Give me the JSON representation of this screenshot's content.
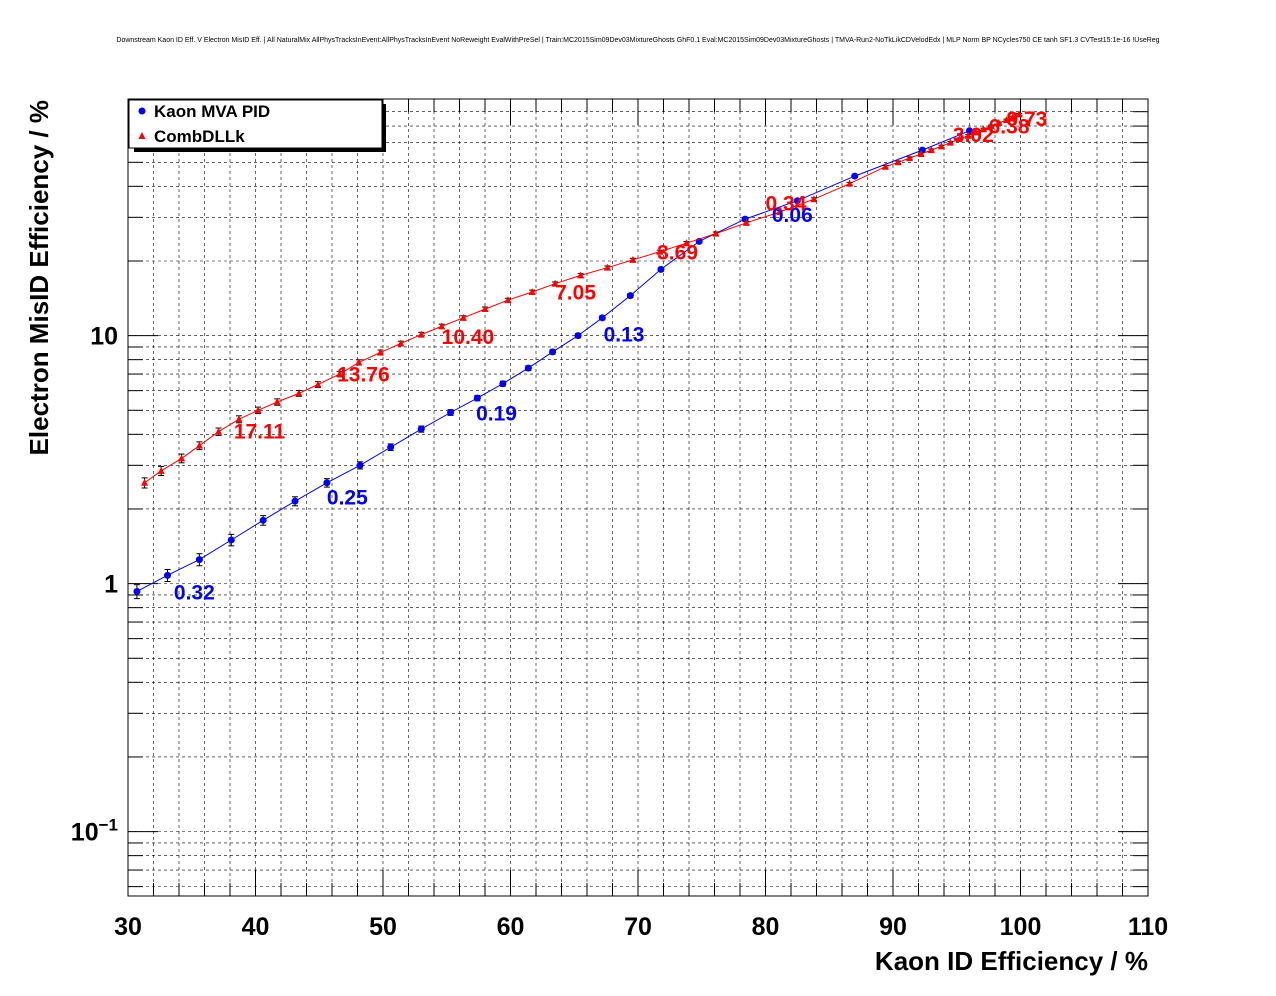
{
  "chart_data": {
    "type": "line",
    "title": "Downstream Kaon ID Eff. V Electron MisID Eff. | All NaturalMix AllPhysTracksInEvent:AllPhysTracksInEvent NoReweight EvalWithPreSel | Train:MC2015Sim09Dev03MixtureGhosts GhF0.1 Eval:MC2015Sim09Dev03MixtureGhosts | TMVA-Run2-NoTkLikCDVelodEdx | MLP Norm BP NCycles750 CE tanh SF1.3 CVTest15:1e-16 !UseReg",
    "xlabel": "Kaon ID Efficiency / %",
    "ylabel": "Electron MisID Efficiency / %",
    "xlim": [
      30,
      110
    ],
    "ylim": [
      0.055,
      90
    ],
    "yscale": "log",
    "grid": true,
    "legend_position": "top-left",
    "x_ticks": [
      {
        "value": 30,
        "label": "30"
      },
      {
        "value": 40,
        "label": "40"
      },
      {
        "value": 50,
        "label": "50"
      },
      {
        "value": 60,
        "label": "60"
      },
      {
        "value": 70,
        "label": "70"
      },
      {
        "value": 80,
        "label": "80"
      },
      {
        "value": 90,
        "label": "90"
      },
      {
        "value": 100,
        "label": "100"
      },
      {
        "value": 110,
        "label": "110"
      }
    ],
    "y_ticks": [
      {
        "value": 0.1,
        "base": "10",
        "exp": "−1"
      },
      {
        "value": 1,
        "base": "1",
        "exp": ""
      },
      {
        "value": 10,
        "base": "10",
        "exp": ""
      }
    ],
    "series": [
      {
        "name": "Kaon MVA PID",
        "color": "#0000ff",
        "marker": "circle",
        "x": [
          30.7,
          33.1,
          35.6,
          38.1,
          40.6,
          43.1,
          45.6,
          48.2,
          50.6,
          53.0,
          55.3,
          57.4,
          59.4,
          61.4,
          63.3,
          65.3,
          67.2,
          69.4,
          71.8,
          74.8,
          78.4,
          82.5,
          87.0,
          92.3,
          96.0
        ],
        "y": [
          0.93,
          1.08,
          1.25,
          1.5,
          1.8,
          2.15,
          2.55,
          3.0,
          3.55,
          4.2,
          4.9,
          5.6,
          6.4,
          7.4,
          8.6,
          10.0,
          11.8,
          14.5,
          18.5,
          24.0,
          29.5,
          35.0,
          44.0,
          56.0,
          67.0
        ],
        "y_err": [
          0.06,
          0.06,
          0.07,
          0.08,
          0.08,
          0.09,
          0.1,
          0.1,
          0.11,
          0.12,
          0.13,
          0.14,
          0.15,
          0.16,
          0.18,
          0.2,
          0.22,
          0.25,
          0.3,
          0.35,
          0.4,
          0.45,
          0.5,
          0.6,
          0.7
        ]
      },
      {
        "name": "CombDLLk",
        "color": "#ff0000",
        "marker": "triangle",
        "x": [
          31.3,
          32.6,
          34.2,
          35.6,
          37.1,
          38.7,
          40.2,
          41.7,
          43.4,
          44.9,
          46.6,
          48.1,
          49.8,
          51.4,
          53.0,
          54.6,
          56.3,
          58.0,
          59.8,
          61.7,
          63.5,
          65.5,
          67.6,
          69.6,
          71.7,
          73.8,
          76.1,
          78.5,
          81.1,
          83.8,
          86.6,
          89.4,
          90.4,
          91.3,
          92.2,
          93.0,
          93.8,
          94.5,
          95.2,
          95.9,
          96.5,
          97.1,
          97.7,
          98.3,
          98.9,
          99.4,
          99.9
        ],
        "y": [
          2.55,
          2.85,
          3.2,
          3.6,
          4.1,
          4.6,
          5.0,
          5.4,
          5.85,
          6.35,
          7.0,
          7.8,
          8.55,
          9.3,
          10.1,
          10.9,
          11.8,
          12.8,
          13.9,
          15.0,
          16.2,
          17.5,
          18.8,
          20.2,
          21.8,
          23.6,
          25.8,
          28.5,
          31.5,
          35.5,
          41.0,
          48.0,
          50.0,
          52.0,
          54.0,
          56.0,
          58.0,
          60.0,
          62.0,
          64.0,
          66.0,
          68.0,
          70.0,
          72.0,
          74.0,
          76.0,
          78.0
        ],
        "y_err": [
          0.12,
          0.12,
          0.13,
          0.13,
          0.14,
          0.15,
          0.15,
          0.16,
          0.16,
          0.17,
          0.18,
          0.19,
          0.2,
          0.2,
          0.21,
          0.22,
          0.23,
          0.24,
          0.25,
          0.26,
          0.27,
          0.28,
          0.3,
          0.31,
          0.33,
          0.35,
          0.37,
          0.4,
          0.43,
          0.46,
          0.5,
          0.55,
          0.56,
          0.57,
          0.58,
          0.59,
          0.6,
          0.61,
          0.62,
          0.63,
          0.64,
          0.65,
          0.66,
          0.67,
          0.68,
          0.69,
          0.7
        ]
      }
    ],
    "annotations": [
      {
        "text": "0.32",
        "x": 33.6,
        "y": 0.93,
        "color": "#0000ff"
      },
      {
        "text": "0.25",
        "x": 45.6,
        "y": 2.25,
        "color": "#0000ff"
      },
      {
        "text": "0.19",
        "x": 57.3,
        "y": 4.9,
        "color": "#0000ff"
      },
      {
        "text": "0.13",
        "x": 67.3,
        "y": 10.2,
        "color": "#0000ff"
      },
      {
        "text": "0.06",
        "x": 80.5,
        "y": 31.0,
        "color": "#0000ff"
      },
      {
        "text": "17.11",
        "x": 38.3,
        "y": 4.15,
        "color": "#ff0000"
      },
      {
        "text": "13.76",
        "x": 46.4,
        "y": 7.05,
        "color": "#ff0000"
      },
      {
        "text": "10.40",
        "x": 54.6,
        "y": 9.95,
        "color": "#ff0000"
      },
      {
        "text": "7.05",
        "x": 63.5,
        "y": 15.1,
        "color": "#ff0000"
      },
      {
        "text": "3.69",
        "x": 71.5,
        "y": 21.8,
        "color": "#ff0000"
      },
      {
        "text": "0.34",
        "x": 80.0,
        "y": 34.5,
        "color": "#ff0000"
      },
      {
        "text": "3.02",
        "x": 94.7,
        "y": 65.0,
        "color": "#ff0000"
      },
      {
        "text": "6.38",
        "x": 97.5,
        "y": 70.5,
        "color": "#ff0000"
      },
      {
        "text": "9.73",
        "x": 98.9,
        "y": 75.5,
        "color": "#ff0000"
      }
    ]
  }
}
